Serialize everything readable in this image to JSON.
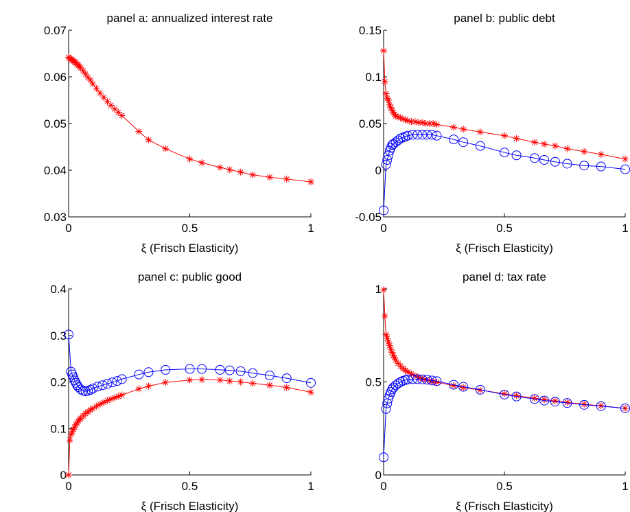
{
  "figure": {
    "colors": {
      "red_series": "#ff0000",
      "blue_series": "#0000ff",
      "axes": "#000000"
    }
  },
  "chart_data": [
    {
      "type": "line",
      "title": "panel a: annualized interest rate",
      "xlabel": "ξ (Frisch Elasticity)",
      "ylabel": "",
      "xlim": [
        0,
        1
      ],
      "ylim": [
        0.03,
        0.07
      ],
      "xticks": [
        0,
        0.5,
        1
      ],
      "xtick_labels": [
        "0",
        "0.5",
        "1"
      ],
      "yticks": [
        0.03,
        0.04,
        0.05,
        0.06,
        0.07
      ],
      "ytick_labels": [
        "0.03",
        "0.04",
        "0.05",
        "0.06",
        "0.07"
      ],
      "grid": false,
      "series": [
        {
          "marker": "asterisk",
          "color": "#ff0000",
          "x": [
            0,
            0.005,
            0.01,
            0.015,
            0.02,
            0.025,
            0.03,
            0.035,
            0.04,
            0.045,
            0.05,
            0.06,
            0.07,
            0.08,
            0.09,
            0.1,
            0.115,
            0.13,
            0.145,
            0.16,
            0.175,
            0.19,
            0.205,
            0.22,
            0.29,
            0.33,
            0.4,
            0.5,
            0.55,
            0.625,
            0.665,
            0.71,
            0.76,
            0.83,
            0.9,
            1.0
          ],
          "y": [
            0.0642,
            0.064,
            0.0638,
            0.0636,
            0.0634,
            0.0632,
            0.063,
            0.0627,
            0.0625,
            0.0622,
            0.0619,
            0.0613,
            0.0606,
            0.0599,
            0.0593,
            0.0585,
            0.0575,
            0.0565,
            0.0556,
            0.0547,
            0.0539,
            0.0531,
            0.0524,
            0.0517,
            0.0483,
            0.0465,
            0.0446,
            0.0424,
            0.0416,
            0.0406,
            0.0401,
            0.0396,
            0.039,
            0.0385,
            0.0381,
            0.0375
          ]
        }
      ]
    },
    {
      "type": "line",
      "title": "panel b: public debt",
      "xlabel": "ξ (Frisch Elasticity)",
      "ylabel": "",
      "xlim": [
        0,
        1
      ],
      "ylim": [
        -0.05,
        0.15
      ],
      "xticks": [
        0,
        0.5,
        1
      ],
      "xtick_labels": [
        "0",
        "0.5",
        "1"
      ],
      "yticks": [
        -0.05,
        0,
        0.05,
        0.1,
        0.15
      ],
      "ytick_labels": [
        "-0.05",
        "0",
        "0.05",
        "0.1",
        "0.15"
      ],
      "grid": false,
      "series": [
        {
          "marker": "asterisk",
          "color": "#ff0000",
          "x": [
            0,
            0.005,
            0.01,
            0.015,
            0.02,
            0.025,
            0.03,
            0.035,
            0.04,
            0.045,
            0.05,
            0.06,
            0.07,
            0.08,
            0.09,
            0.1,
            0.115,
            0.13,
            0.145,
            0.16,
            0.175,
            0.19,
            0.205,
            0.22,
            0.29,
            0.33,
            0.4,
            0.5,
            0.55,
            0.625,
            0.665,
            0.71,
            0.76,
            0.83,
            0.9,
            1.0
          ],
          "y": [
            0.128,
            0.095,
            0.082,
            0.077,
            0.075,
            0.07,
            0.067,
            0.064,
            0.062,
            0.06,
            0.058,
            0.057,
            0.056,
            0.055,
            0.054,
            0.053,
            0.052,
            0.052,
            0.051,
            0.051,
            0.05,
            0.05,
            0.05,
            0.049,
            0.046,
            0.044,
            0.041,
            0.037,
            0.034,
            0.03,
            0.028,
            0.026,
            0.023,
            0.02,
            0.017,
            0.012
          ]
        },
        {
          "marker": "circle",
          "color": "#0000ff",
          "x": [
            0,
            0.01,
            0.015,
            0.02,
            0.025,
            0.03,
            0.035,
            0.04,
            0.05,
            0.06,
            0.07,
            0.08,
            0.09,
            0.1,
            0.12,
            0.14,
            0.16,
            0.18,
            0.2,
            0.22,
            0.29,
            0.33,
            0.4,
            0.5,
            0.55,
            0.625,
            0.665,
            0.71,
            0.76,
            0.83,
            0.9,
            1.0
          ],
          "y": [
            -0.043,
            0.006,
            0.011,
            0.016,
            0.021,
            0.024,
            0.027,
            0.028,
            0.03,
            0.032,
            0.034,
            0.035,
            0.036,
            0.037,
            0.038,
            0.038,
            0.038,
            0.038,
            0.038,
            0.037,
            0.033,
            0.03,
            0.026,
            0.019,
            0.016,
            0.013,
            0.011,
            0.009,
            0.007,
            0.005,
            0.004,
            0.001
          ]
        }
      ]
    },
    {
      "type": "line",
      "title": "panel c: public good",
      "xlabel": "ξ (Frisch Elasticity)",
      "ylabel": "",
      "xlim": [
        0,
        1
      ],
      "ylim": [
        0,
        0.4
      ],
      "xticks": [
        0,
        0.5,
        1
      ],
      "xtick_labels": [
        "0",
        "0.5",
        "1"
      ],
      "yticks": [
        0,
        0.1,
        0.2,
        0.3,
        0.4
      ],
      "ytick_labels": [
        "0",
        "0.1",
        "0.2",
        "0.3",
        "0.4"
      ],
      "grid": false,
      "series": [
        {
          "marker": "asterisk",
          "color": "#ff0000",
          "x": [
            0,
            0.005,
            0.01,
            0.015,
            0.02,
            0.025,
            0.03,
            0.035,
            0.04,
            0.045,
            0.05,
            0.06,
            0.07,
            0.08,
            0.09,
            0.1,
            0.115,
            0.13,
            0.145,
            0.16,
            0.175,
            0.19,
            0.205,
            0.22,
            0.29,
            0.33,
            0.4,
            0.5,
            0.55,
            0.625,
            0.665,
            0.71,
            0.76,
            0.83,
            0.9,
            1.0
          ],
          "y": [
            0.0,
            0.075,
            0.087,
            0.093,
            0.098,
            0.103,
            0.108,
            0.112,
            0.116,
            0.119,
            0.122,
            0.127,
            0.132,
            0.136,
            0.14,
            0.143,
            0.148,
            0.152,
            0.156,
            0.16,
            0.163,
            0.166,
            0.169,
            0.172,
            0.185,
            0.191,
            0.199,
            0.204,
            0.205,
            0.204,
            0.202,
            0.2,
            0.197,
            0.193,
            0.188,
            0.178
          ]
        },
        {
          "marker": "circle",
          "color": "#0000ff",
          "x": [
            0,
            0.01,
            0.015,
            0.02,
            0.025,
            0.03,
            0.035,
            0.04,
            0.05,
            0.06,
            0.07,
            0.08,
            0.09,
            0.1,
            0.12,
            0.14,
            0.16,
            0.18,
            0.2,
            0.22,
            0.29,
            0.33,
            0.4,
            0.5,
            0.55,
            0.625,
            0.665,
            0.71,
            0.76,
            0.83,
            0.9,
            1.0
          ],
          "y": [
            0.302,
            0.222,
            0.216,
            0.21,
            0.203,
            0.198,
            0.193,
            0.189,
            0.184,
            0.181,
            0.18,
            0.181,
            0.183,
            0.186,
            0.19,
            0.193,
            0.196,
            0.199,
            0.202,
            0.206,
            0.216,
            0.221,
            0.226,
            0.228,
            0.228,
            0.226,
            0.225,
            0.223,
            0.219,
            0.214,
            0.208,
            0.198
          ]
        }
      ]
    },
    {
      "type": "line",
      "title": "panel d: tax rate",
      "xlabel": "ξ (Frisch Elasticity)",
      "ylabel": "",
      "xlim": [
        0,
        1
      ],
      "ylim": [
        0,
        1
      ],
      "xticks": [
        0,
        0.5,
        1
      ],
      "xtick_labels": [
        "0",
        "0.5",
        "1"
      ],
      "yticks": [
        0,
        0.5,
        1
      ],
      "ytick_labels": [
        "0",
        "0.5",
        "1"
      ],
      "grid": false,
      "series": [
        {
          "marker": "asterisk",
          "color": "#ff0000",
          "x": [
            0,
            0.005,
            0.01,
            0.015,
            0.02,
            0.025,
            0.03,
            0.035,
            0.04,
            0.045,
            0.05,
            0.06,
            0.07,
            0.08,
            0.09,
            0.1,
            0.115,
            0.13,
            0.145,
            0.16,
            0.175,
            0.19,
            0.205,
            0.22,
            0.29,
            0.33,
            0.4,
            0.5,
            0.55,
            0.625,
            0.665,
            0.71,
            0.76,
            0.83,
            0.9,
            1.0
          ],
          "y": [
            0.995,
            0.855,
            0.755,
            0.735,
            0.715,
            0.695,
            0.675,
            0.658,
            0.643,
            0.63,
            0.618,
            0.6,
            0.585,
            0.573,
            0.563,
            0.554,
            0.543,
            0.533,
            0.525,
            0.518,
            0.512,
            0.507,
            0.502,
            0.498,
            0.48,
            0.47,
            0.456,
            0.436,
            0.426,
            0.412,
            0.405,
            0.398,
            0.39,
            0.38,
            0.372,
            0.358
          ]
        },
        {
          "marker": "circle",
          "color": "#0000ff",
          "x": [
            0,
            0.01,
            0.015,
            0.02,
            0.025,
            0.03,
            0.035,
            0.04,
            0.05,
            0.06,
            0.07,
            0.08,
            0.09,
            0.1,
            0.12,
            0.14,
            0.16,
            0.18,
            0.2,
            0.22,
            0.29,
            0.33,
            0.4,
            0.5,
            0.55,
            0.625,
            0.665,
            0.71,
            0.76,
            0.83,
            0.9,
            1.0
          ],
          "y": [
            0.095,
            0.355,
            0.385,
            0.41,
            0.43,
            0.446,
            0.46,
            0.47,
            0.482,
            0.492,
            0.5,
            0.506,
            0.51,
            0.513,
            0.515,
            0.515,
            0.514,
            0.512,
            0.508,
            0.504,
            0.485,
            0.474,
            0.458,
            0.432,
            0.422,
            0.408,
            0.4,
            0.394,
            0.387,
            0.377,
            0.37,
            0.358
          ]
        }
      ]
    }
  ]
}
